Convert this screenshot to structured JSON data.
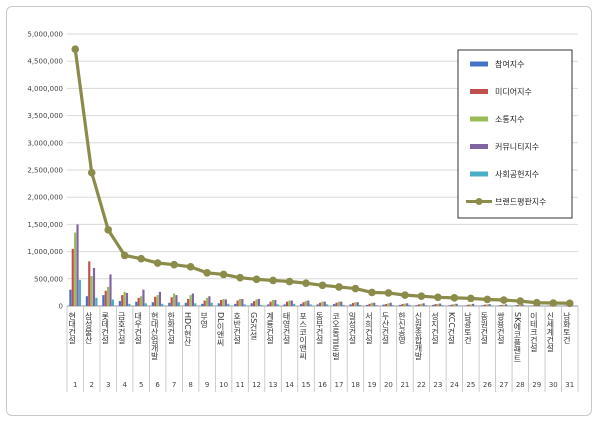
{
  "chart_data": {
    "type": "bar",
    "ylim": [
      0,
      5000000
    ],
    "yticks": [
      "0",
      "500,000",
      "1,000,000",
      "1,500,000",
      "2,000,000",
      "2,500,000",
      "3,000,000",
      "3,500,000",
      "4,000,000",
      "4,500,000",
      "5,000,000"
    ],
    "grid": true,
    "legend_position": "top-right",
    "categories": [
      "현대건설",
      "삼성물산",
      "롯데건설",
      "금호건설",
      "대우건설",
      "현대산업개발",
      "한화건설",
      "HDC현산",
      "부영",
      "DL이앤씨",
      "호반건설",
      "GS건설",
      "계룡건설",
      "태영건설",
      "포스코이앤씨",
      "동부건설",
      "코오롱글로벌",
      "일성건설",
      "서희건설",
      "두산건설",
      "한신공영",
      "신원종합개발",
      "성지건설",
      "KCC건설",
      "남광토건",
      "동원건설",
      "쌍용건설",
      "SK에코플랜트",
      "이테크건설",
      "신세계건설",
      "남화토건"
    ],
    "index_labels": [
      "1",
      "2",
      "3",
      "4",
      "5",
      "6",
      "7",
      "8",
      "9",
      "10",
      "11",
      "12",
      "13",
      "14",
      "15",
      "16",
      "17",
      "18",
      "19",
      "20",
      "21",
      "22",
      "23",
      "24",
      "25",
      "26",
      "27",
      "28",
      "29",
      "30",
      "31"
    ],
    "series": [
      {
        "name": "참여지수",
        "type": "bar",
        "color": "#4472c4",
        "values": [
          300000,
          180000,
          200000,
          90000,
          80000,
          70000,
          60000,
          60000,
          40000,
          50000,
          40000,
          50000,
          30000,
          30000,
          40000,
          30000,
          35000,
          30000,
          20000,
          25000,
          20000,
          15000,
          20000,
          15000,
          10000,
          15000,
          10000,
          12000,
          8000,
          8000,
          8000
        ]
      },
      {
        "name": "미디어지수",
        "type": "bar",
        "color": "#c0504d",
        "values": [
          1050000,
          820000,
          280000,
          200000,
          150000,
          170000,
          160000,
          130000,
          100000,
          110000,
          100000,
          90000,
          80000,
          80000,
          70000,
          60000,
          60000,
          55000,
          40000,
          35000,
          35000,
          30000,
          35000,
          25000,
          25000,
          25000,
          20000,
          20000,
          15000,
          12000,
          12000
        ]
      },
      {
        "name": "소통지수",
        "type": "bar",
        "color": "#9bbb59",
        "values": [
          1350000,
          550000,
          350000,
          260000,
          180000,
          200000,
          230000,
          200000,
          150000,
          130000,
          130000,
          120000,
          110000,
          100000,
          90000,
          80000,
          80000,
          70000,
          60000,
          50000,
          45000,
          40000,
          40000,
          35000,
          30000,
          30000,
          25000,
          25000,
          20000,
          15000,
          15000
        ]
      },
      {
        "name": "커뮤니티지수",
        "type": "bar",
        "color": "#8064a2",
        "values": [
          1500000,
          700000,
          580000,
          240000,
          300000,
          260000,
          200000,
          230000,
          180000,
          120000,
          130000,
          130000,
          110000,
          100000,
          100000,
          80000,
          80000,
          70000,
          60000,
          60000,
          50000,
          50000,
          45000,
          40000,
          40000,
          35000,
          30000,
          30000,
          25000,
          20000,
          20000
        ]
      },
      {
        "name": "사회공헌지수",
        "type": "bar",
        "color": "#4bacc6",
        "values": [
          480000,
          150000,
          120000,
          40000,
          50000,
          40000,
          70000,
          50000,
          60000,
          40000,
          30000,
          20000,
          30000,
          40000,
          30000,
          30000,
          20000,
          20000,
          15000,
          15000,
          20000,
          15000,
          15000,
          10000,
          10000,
          10000,
          10000,
          8000,
          8000,
          6000,
          6000
        ]
      },
      {
        "name": "브랜드평판지수",
        "type": "line",
        "color": "#8b8b4a",
        "values": [
          4720000,
          2450000,
          1400000,
          930000,
          870000,
          790000,
          760000,
          720000,
          610000,
          580000,
          520000,
          490000,
          470000,
          450000,
          420000,
          380000,
          350000,
          320000,
          250000,
          240000,
          200000,
          180000,
          160000,
          150000,
          140000,
          120000,
          110000,
          90000,
          60000,
          55000,
          50000
        ]
      }
    ]
  }
}
